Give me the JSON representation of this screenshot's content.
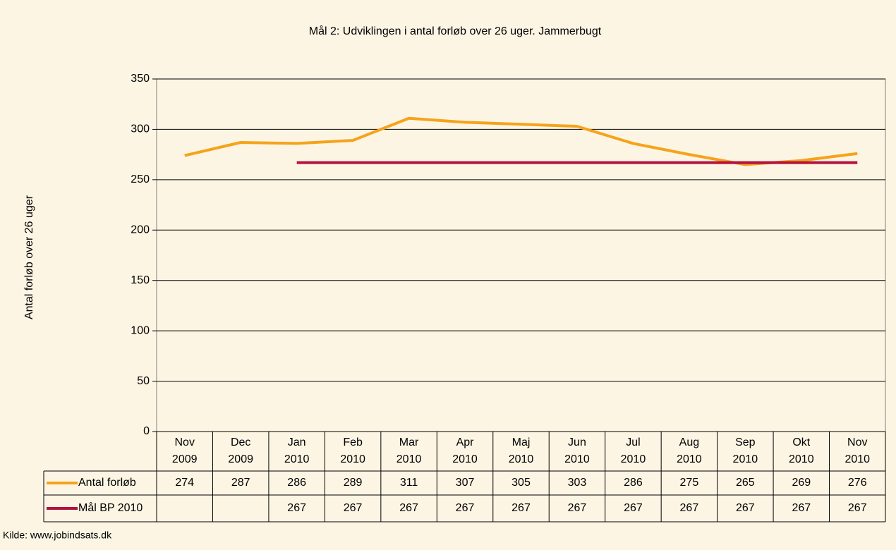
{
  "chart_data": {
    "type": "line",
    "title": "Mål 2: Udviklingen i antal forløb over 26 uger. Jammerbugt",
    "y_label": "Antal forløb over 26 uger",
    "source": "Kilde: www.jobindsats.dk",
    "categories": [
      "Nov 2009",
      "Dec 2009",
      "Jan 2010",
      "Feb 2010",
      "Mar 2010",
      "Apr 2010",
      "Maj 2010",
      "Jun 2010",
      "Jul 2010",
      "Aug 2010",
      "Sep 2010",
      "Okt 2010",
      "Nov 2010"
    ],
    "series": [
      {
        "name": "Antal forløb",
        "color": "#f5a31a",
        "values": [
          274,
          287,
          286,
          289,
          311,
          307,
          305,
          303,
          286,
          275,
          265,
          269,
          276
        ]
      },
      {
        "name": "Mål BP 2010",
        "color": "#b3123f",
        "values": [
          null,
          null,
          267,
          267,
          267,
          267,
          267,
          267,
          267,
          267,
          267,
          267,
          267
        ]
      }
    ],
    "ylim": [
      0,
      350
    ],
    "yticks": [
      0,
      50,
      100,
      150,
      200,
      250,
      300,
      350
    ],
    "grid": true
  }
}
